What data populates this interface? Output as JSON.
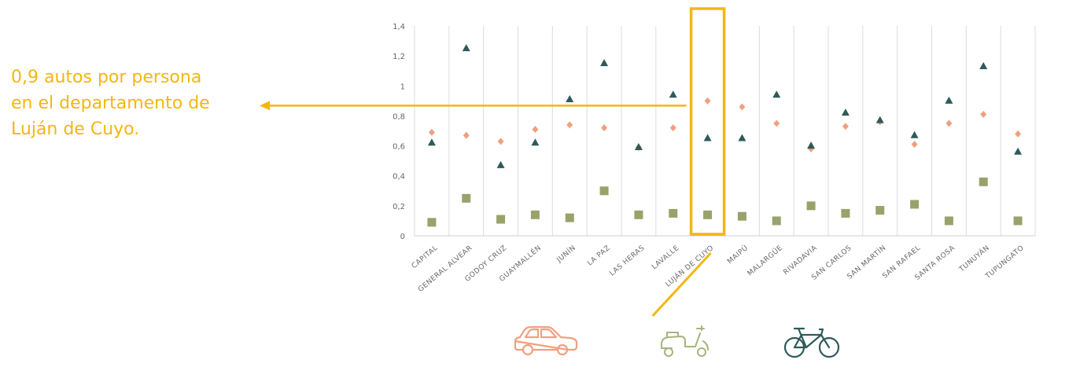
{
  "annotation": {
    "lines": [
      "0,9 autos por persona",
      "en el departamento de",
      "Luján de Cuyo."
    ],
    "color": "#f2b70f",
    "highlight_category": "LUJÁN DE CUYO"
  },
  "chart_data": {
    "type": "scatter",
    "categories": [
      "CAPITAL",
      "GENERAL ALVEAR",
      "GODOY CRUZ",
      "GUAYMALLÉN",
      "JUNÍN",
      "LA PAZ",
      "LAS HERAS",
      "LAVALLE",
      "LUJÁN DE CUYO",
      "MAIPÚ",
      "MALARGÜE",
      "RIVADAVIA",
      "SAN CARLOS",
      "SAN MARTÍN",
      "SAN RAFAEL",
      "SANTA ROSA",
      "TUNUYÁN",
      "TUPUNGATO"
    ],
    "yticks": [
      "0",
      "0,2",
      "0,4",
      "0,6",
      "0,8",
      "1",
      "1,2",
      "1,4"
    ],
    "ylim": [
      0,
      1.4
    ],
    "grid": "vertical",
    "series": [
      {
        "icon": "car-icon",
        "marker": "diamond",
        "color": "#f0a07f",
        "values": [
          0.69,
          0.67,
          0.63,
          0.71,
          0.74,
          0.72,
          0.59,
          0.72,
          0.9,
          0.86,
          0.75,
          0.58,
          0.73,
          0.76,
          0.61,
          0.75,
          0.81,
          0.68
        ]
      },
      {
        "icon": "scooter-icon",
        "marker": "square",
        "color": "#98a36b",
        "values": [
          0.09,
          0.25,
          0.11,
          0.14,
          0.12,
          0.3,
          0.14,
          0.15,
          0.14,
          0.13,
          0.1,
          0.2,
          0.15,
          0.17,
          0.21,
          0.1,
          0.36,
          0.1
        ]
      },
      {
        "icon": "bicycle-icon",
        "marker": "triangle",
        "color": "#2e5a5a",
        "values": [
          0.62,
          1.25,
          0.47,
          0.62,
          0.91,
          1.15,
          0.59,
          0.94,
          0.65,
          0.65,
          0.94,
          0.6,
          0.82,
          0.77,
          0.67,
          0.9,
          1.13,
          0.56
        ]
      }
    ]
  },
  "legend_icons": {
    "car": {
      "name": "car-icon",
      "color": "#f0a07f"
    },
    "scooter": {
      "name": "scooter-icon",
      "color": "#a6b47d"
    },
    "bicycle": {
      "name": "bicycle-icon",
      "color": "#2e5a5a"
    }
  }
}
